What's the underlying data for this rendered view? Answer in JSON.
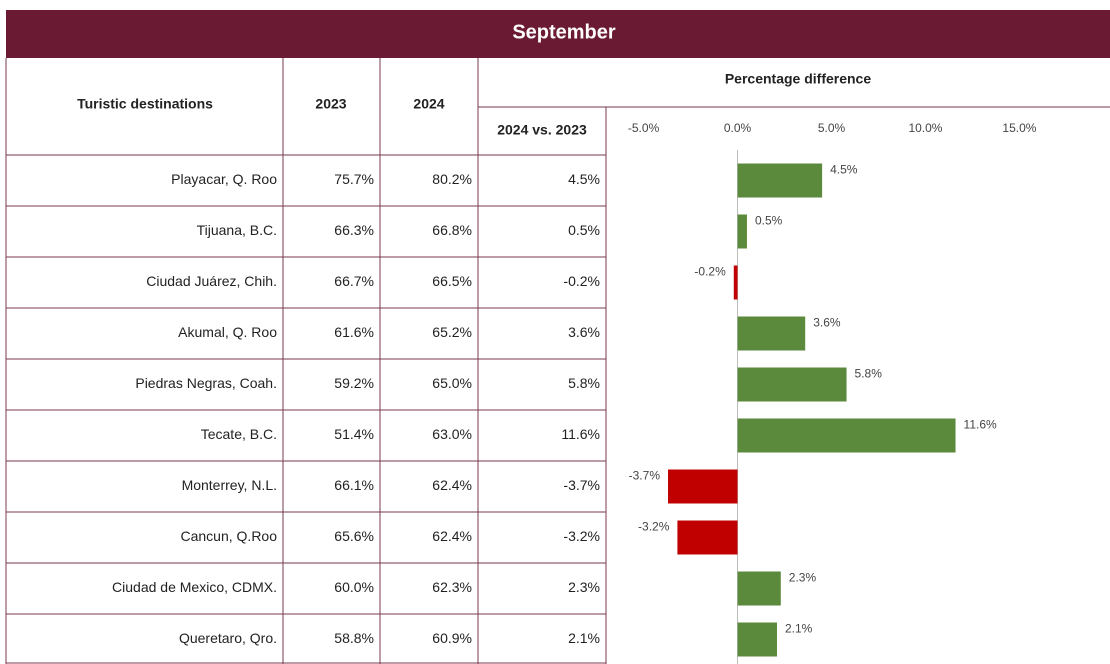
{
  "title": "September",
  "table": {
    "headers": [
      "Turistic destinations",
      "2023",
      "2024"
    ],
    "diff_header": "Percentage difference",
    "sub_header": "2024 vs. 2023",
    "rows": [
      [
        "Playacar, Q. Roo",
        "75.7%",
        "80.2%",
        "4.5%"
      ],
      [
        "Tijuana, B.C.",
        "66.3%",
        "66.8%",
        "0.5%"
      ],
      [
        "Ciudad Juárez, Chih.",
        "66.7%",
        "66.5%",
        "-0.2%"
      ],
      [
        "Akumal, Q. Roo",
        "61.6%",
        "65.2%",
        "3.6%"
      ],
      [
        "Piedras Negras, Coah.",
        "59.2%",
        "65.0%",
        "5.8%"
      ],
      [
        "Tecate, B.C.",
        "51.4%",
        "63.0%",
        "11.6%"
      ],
      [
        "Monterrey, N.L.",
        "66.1%",
        "62.4%",
        "-3.7%"
      ],
      [
        "Cancun, Q.Roo",
        "65.6%",
        "62.4%",
        "-3.2%"
      ],
      [
        "Ciudad de Mexico, CDMX.",
        "60.0%",
        "62.3%",
        "2.3%"
      ],
      [
        "Queretaro, Qro.",
        "58.8%",
        "60.9%",
        "2.1%"
      ]
    ]
  },
  "chart_data": {
    "type": "bar",
    "orientation": "horizontal",
    "values": [
      4.5,
      0.5,
      -0.2,
      3.6,
      5.8,
      11.6,
      -3.7,
      -3.2,
      2.3,
      2.1
    ],
    "value_labels": [
      "4.5%",
      "0.5%",
      "-0.2%",
      "3.6%",
      "5.8%",
      "11.6%",
      "-3.7%",
      "-3.2%",
      "2.3%",
      "2.1%"
    ],
    "xlim": [
      -7,
      19.5
    ],
    "xticks": [
      {
        "value": -5,
        "label": "-5.0%"
      },
      {
        "value": 0,
        "label": "0.0%"
      },
      {
        "value": 5,
        "label": "5.0%"
      },
      {
        "value": 10,
        "label": "10.0%"
      },
      {
        "value": 15,
        "label": "15.0%"
      }
    ],
    "positive_color": "#5b8a3c",
    "negative_color": "#c00000"
  }
}
